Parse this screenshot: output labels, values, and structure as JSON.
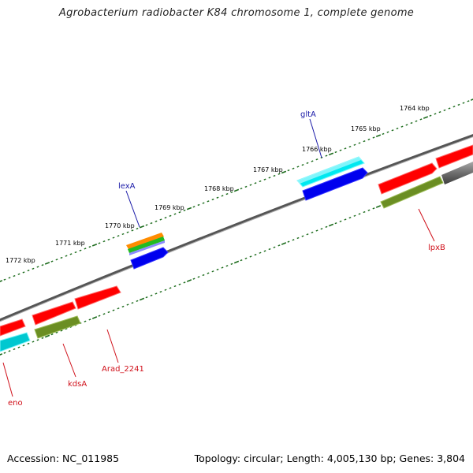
{
  "title": "Agrobacterium radiobacter K84 chromosome 1, complete genome",
  "footer": {
    "accession": "Accession: NC_011985",
    "summary": "Topology: circular; Length: 4,005,130 bp; Genes: 3,804"
  },
  "scale_labels": [
    "1764 kbp",
    "1765 kbp",
    "1766 kbp",
    "1767 kbp",
    "1768 kbp",
    "1769 kbp",
    "1770 kbp",
    "1771 kbp",
    "1772 kbp"
  ],
  "genes_top": [
    {
      "name": "gltA",
      "color": "#1a1aa8"
    },
    {
      "name": "lexA",
      "color": "#1a1aa8"
    }
  ],
  "genes_bottom": [
    {
      "name": "lpxB",
      "color": "#d0101a"
    },
    {
      "name": "Arad_2241",
      "color": "#d0101a"
    },
    {
      "name": "kdsA",
      "color": "#d0101a"
    },
    {
      "name": "eno",
      "color": "#d0101a"
    }
  ],
  "colors": {
    "red": "#ff0000",
    "blue": "#0000ee",
    "cyan": "#00e8f0",
    "olive": "#6b8e23",
    "gray": "#6a6a6a",
    "tick_green": "#1b6b1b",
    "orange": "#ff8c00",
    "green": "#22bb22"
  }
}
